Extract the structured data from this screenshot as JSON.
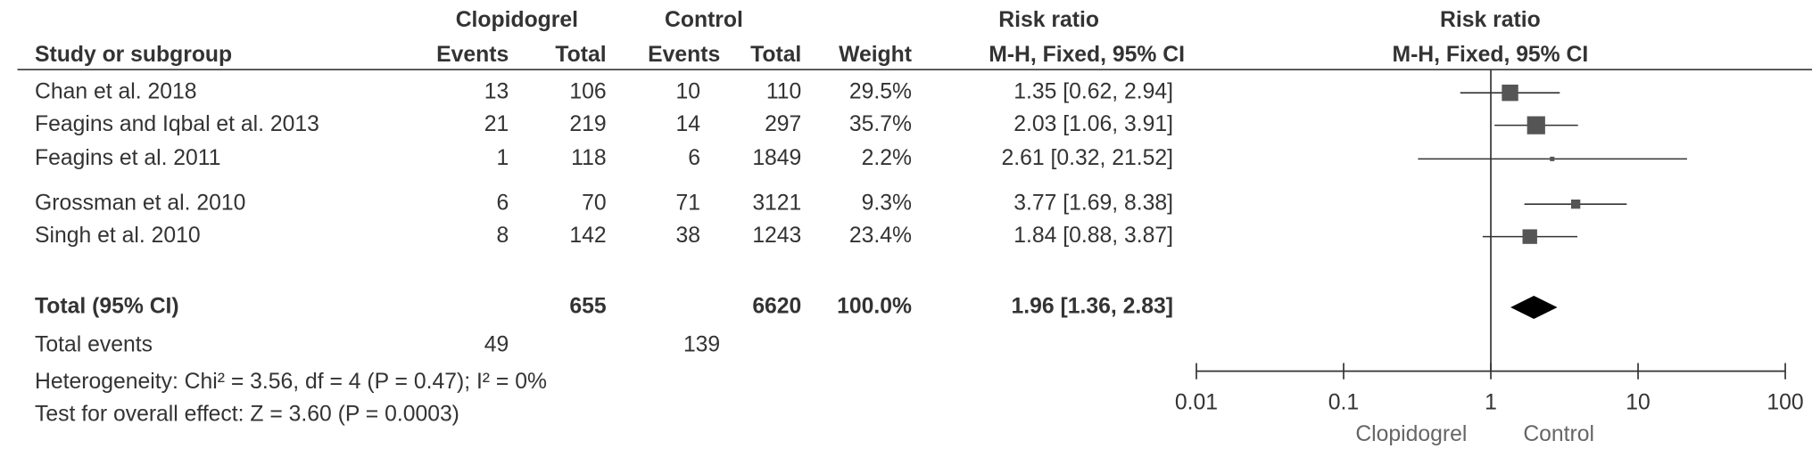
{
  "chart_data": {
    "type": "forest",
    "header": {
      "study": "Study or subgroup",
      "group_left": "Clopidogrel",
      "group_right": "Control",
      "events": "Events",
      "total": "Total",
      "weight": "Weight",
      "effect": "Risk ratio",
      "method": "M-H, Fixed, 95% CI",
      "plot_effect": "Risk ratio",
      "plot_method": "M-H, Fixed, 95% CI"
    },
    "studies": [
      {
        "name": "Chan et al. 2018",
        "exp_events": 13,
        "exp_total": 106,
        "ctl_events": 10,
        "ctl_total": 110,
        "weight": 29.5,
        "weight_label": "29.5%",
        "rr": 1.35,
        "lo": 0.62,
        "hi": 2.94,
        "rr_label": "1.35 [0.62, 2.94]"
      },
      {
        "name": "Feagins and Iqbal et al. 2013",
        "exp_events": 21,
        "exp_total": 219,
        "ctl_events": 14,
        "ctl_total": 297,
        "weight": 35.7,
        "weight_label": "35.7%",
        "rr": 2.03,
        "lo": 1.06,
        "hi": 3.91,
        "rr_label": "2.03 [1.06, 3.91]"
      },
      {
        "name": "Feagins et al. 2011",
        "exp_events": 1,
        "exp_total": 118,
        "ctl_events": 6,
        "ctl_total": 1849,
        "weight": 2.2,
        "weight_label": "2.2%",
        "rr": 2.61,
        "lo": 0.32,
        "hi": 21.52,
        "rr_label": "2.61 [0.32, 21.52]"
      },
      {
        "name": "Grossman et al. 2010",
        "exp_events": 6,
        "exp_total": 70,
        "ctl_events": 71,
        "ctl_total": 3121,
        "weight": 9.3,
        "weight_label": "9.3%",
        "rr": 3.77,
        "lo": 1.69,
        "hi": 8.38,
        "rr_label": "3.77 [1.69, 8.38]"
      },
      {
        "name": "Singh et al. 2010",
        "exp_events": 8,
        "exp_total": 142,
        "ctl_events": 38,
        "ctl_total": 1243,
        "weight": 23.4,
        "weight_label": "23.4%",
        "rr": 1.84,
        "lo": 0.88,
        "hi": 3.87,
        "rr_label": "1.84 [0.88, 3.87]"
      }
    ],
    "total": {
      "name": "Total (95% CI)",
      "exp_total": 655,
      "ctl_total": 6620,
      "weight": 100,
      "weight_label": "100.0%",
      "rr": 1.96,
      "lo": 1.36,
      "hi": 2.83,
      "rr_label": "1.96 [1.36, 2.83]"
    },
    "total_events": {
      "name": "Total events",
      "exp_events": 49,
      "ctl_events": 139
    },
    "heterogeneity": "Heterogeneity: Chi² = 3.56, df = 4 (P = 0.47); I² = 0%",
    "overall_effect": "Test for overall effect: Z = 3.60 (P = 0.0003)",
    "log_scale": true,
    "xlim": [
      0.01,
      100
    ],
    "xticks": [
      0.01,
      0.1,
      1,
      10,
      100
    ],
    "reference": 1,
    "favours_left": "Clopidogrel",
    "favours_right": "Control",
    "marker_color": "#555555",
    "line_color": "#333333"
  }
}
